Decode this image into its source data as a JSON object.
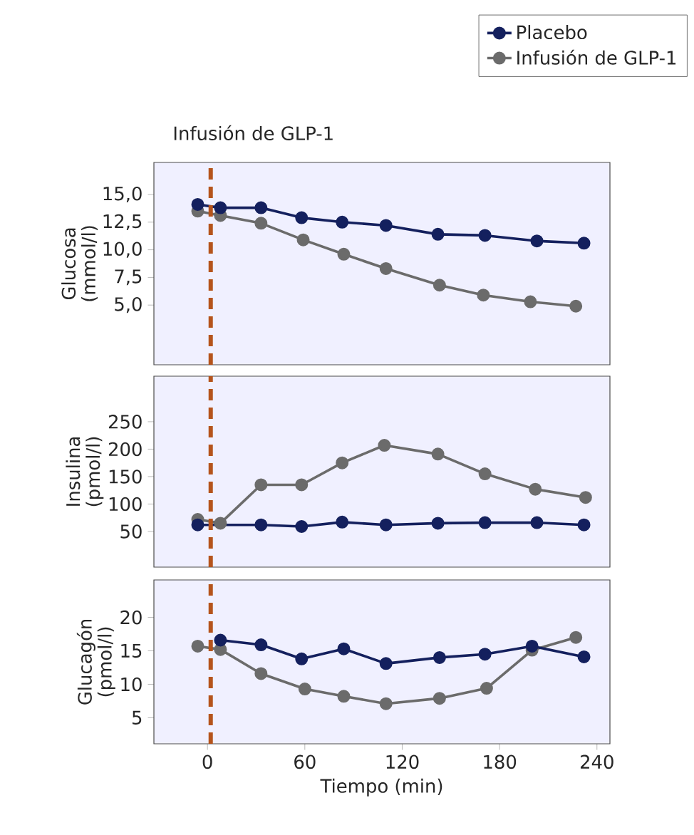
{
  "chart_data": [
    {
      "type": "line",
      "ylabel": "Glucosa (mmol/l)",
      "xlim": [
        -33,
        248
      ],
      "ylim": [
        -0.4,
        17.9
      ],
      "yticks": [
        {
          "value": 5,
          "label": "5,0"
        },
        {
          "value": 7.5,
          "label": "7,5"
        },
        {
          "value": 10,
          "label": "10,0"
        },
        {
          "value": 12.5,
          "label": "12,5"
        },
        {
          "value": 15,
          "label": "15,0"
        }
      ],
      "tick_labels": "y",
      "marker": "circle",
      "legend": "top right",
      "grid": false,
      "ref_lines": [
        {
          "axis": "x",
          "value": 2,
          "label": "Infusión de GLP-1",
          "color": "#b5541c",
          "line_style": "dashed"
        }
      ],
      "series": [
        {
          "name": "Placebo",
          "color": "#14205e",
          "x": [
            -6,
            8,
            33,
            58,
            83,
            110,
            142,
            171,
            203,
            232
          ],
          "values": [
            14.1,
            13.8,
            13.8,
            12.9,
            12.5,
            12.2,
            11.4,
            11.3,
            10.8,
            10.6
          ]
        },
        {
          "name": "Infusión de GLP-1",
          "color": "#6b6b6b",
          "x": [
            -6,
            8,
            33,
            59,
            84,
            110,
            143,
            170,
            199,
            227
          ],
          "values": [
            13.5,
            13.1,
            12.4,
            10.9,
            9.6,
            8.3,
            6.8,
            5.9,
            5.3,
            4.9
          ]
        }
      ]
    },
    {
      "type": "line",
      "ylabel": "Insulina (pmol/l)",
      "xlim": [
        -33,
        248
      ],
      "ylim": [
        -15,
        333
      ],
      "yticks": [
        50,
        100,
        150,
        200,
        250
      ],
      "tick_labels": "y",
      "marker": "circle",
      "grid": false,
      "ref_lines": [
        {
          "axis": "x",
          "value": 2,
          "color": "#b5541c",
          "line_style": "dashed"
        }
      ],
      "series": [
        {
          "color": "#14205e",
          "x": [
            -6,
            8,
            33,
            58,
            83,
            110,
            142,
            171,
            203,
            232
          ],
          "values": [
            62,
            null,
            62,
            59,
            67,
            62,
            65,
            66,
            66,
            62
          ]
        },
        {
          "color": "#6b6b6b",
          "x": [
            -6,
            8,
            33,
            58,
            83,
            109,
            142,
            171,
            202,
            233
          ],
          "values": [
            72,
            65,
            135,
            135,
            175,
            207,
            191,
            155,
            127,
            112
          ]
        }
      ]
    },
    {
      "type": "line",
      "ylabel": "Glucagón (pmol/l)",
      "xlabel": "Tiempo (min)",
      "xlim": [
        -33,
        248
      ],
      "xticks": [
        0,
        60,
        120,
        180,
        240
      ],
      "ylim": [
        1.1,
        25.6
      ],
      "yticks": [
        5,
        10,
        15,
        20
      ],
      "marker": "circle",
      "grid": false,
      "ref_lines": [
        {
          "axis": "x",
          "value": 2,
          "color": "#b5541c",
          "line_style": "dashed"
        }
      ],
      "series": [
        {
          "color": "#14205e",
          "x": [
            8,
            33,
            58,
            84,
            110,
            143,
            171,
            200,
            232
          ],
          "values": [
            16.6,
            15.9,
            13.8,
            15.3,
            13.1,
            14.0,
            14.5,
            15.7,
            14.1
          ]
        },
        {
          "color": "#6b6b6b",
          "x": [
            -6,
            8,
            33,
            60,
            84,
            110,
            143,
            172,
            200,
            227
          ],
          "values": [
            15.7,
            15.2,
            11.6,
            9.3,
            8.2,
            7.1,
            7.9,
            9.4,
            15.1,
            17.0
          ]
        }
      ]
    }
  ]
}
